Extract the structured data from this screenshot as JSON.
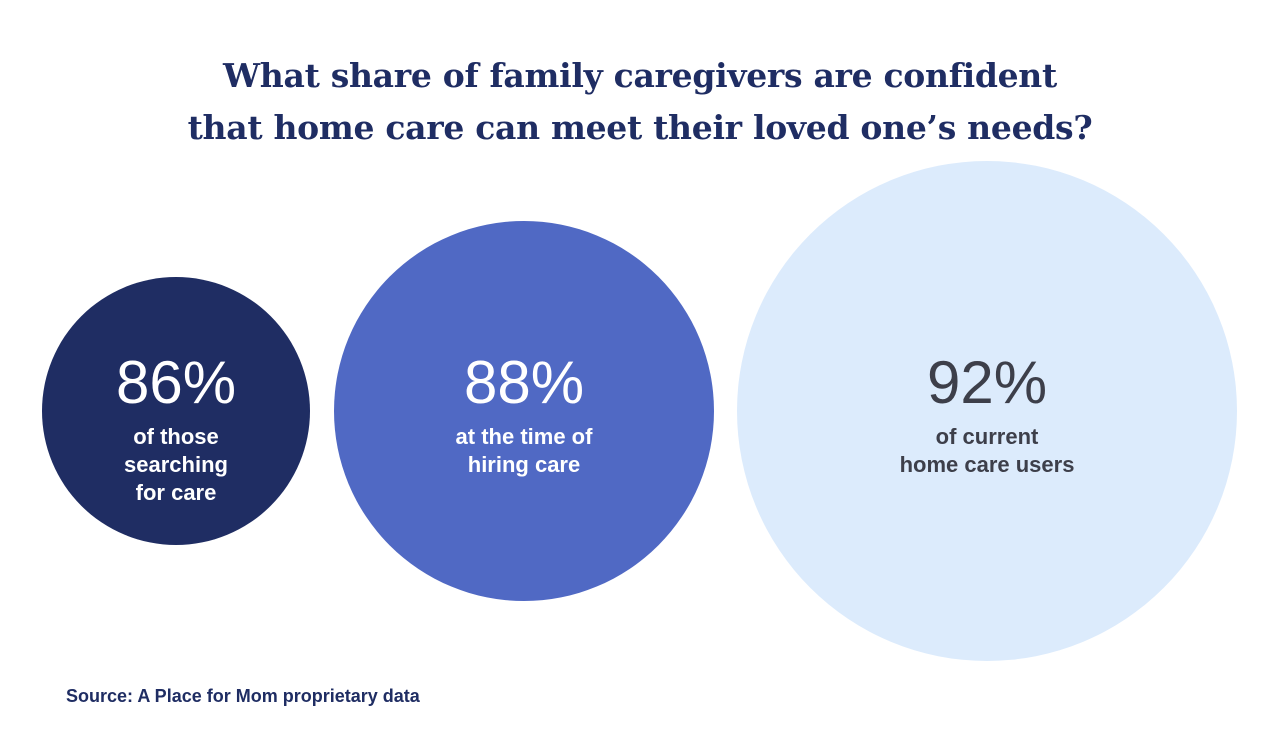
{
  "chart_data": {
    "type": "bubble",
    "title_lines": [
      "What share of family caregivers are confident",
      "that home care can meet their loved one’s needs?"
    ],
    "points": [
      {
        "value": 86,
        "value_label": "86%",
        "label_lines": [
          "of those",
          "searching",
          "for care"
        ],
        "color": "#1f2d63",
        "text_color": "#ffffff"
      },
      {
        "value": 88,
        "value_label": "88%",
        "label_lines": [
          "at the time of",
          "hiring care"
        ],
        "color": "#5069c4",
        "text_color": "#ffffff"
      },
      {
        "value": 92,
        "value_label": "92%",
        "label_lines": [
          "of current",
          "home care users"
        ],
        "color": "#dcebfc",
        "text_color": "#3d3f4a"
      }
    ],
    "source": "Source: A Place for Mom proprietary data"
  }
}
